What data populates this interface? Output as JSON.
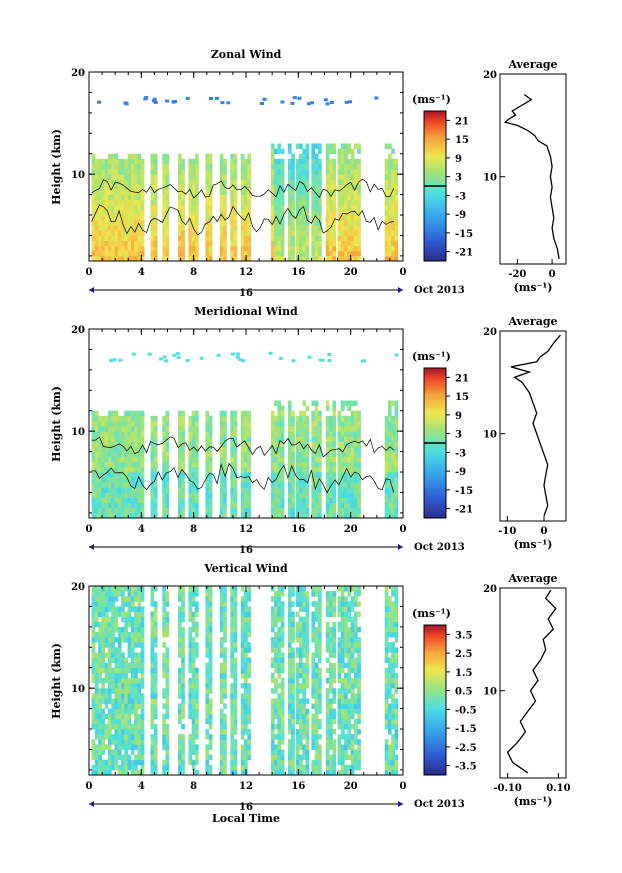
{
  "figure": {
    "time_axis_label": "Local Time",
    "date_label": "Oct 2013",
    "date_day": "16"
  },
  "chart_data": [
    {
      "type": "heatmap",
      "title": "Zonal Wind",
      "ylabel": "Height (km)",
      "xlabel": "Local Time",
      "x_ticks": [
        "0",
        "4",
        "8",
        "12",
        "16",
        "20",
        "0"
      ],
      "y_ticks": [
        "10",
        "20"
      ],
      "xlim": [
        0,
        24
      ],
      "ylim": [
        1.5,
        20
      ],
      "colorbar": {
        "unit": "(ms⁻¹)",
        "ticks": [
          "21",
          "15",
          "9",
          "3",
          "-3",
          "-9",
          "-15",
          "-21"
        ],
        "range": [
          -24,
          24
        ]
      },
      "average_profile": {
        "title": "Average",
        "xlabel": "(ms⁻¹)",
        "x_ticks": [
          "-20",
          "0"
        ],
        "xlim": [
          -30,
          8
        ],
        "ylim": [
          1.5,
          20
        ],
        "profile": [
          [
            4,
            2
          ],
          [
            3,
            3
          ],
          [
            1,
            4
          ],
          [
            0,
            5
          ],
          [
            1,
            6
          ],
          [
            0,
            7
          ],
          [
            -1,
            8
          ],
          [
            0,
            9
          ],
          [
            -1,
            10
          ],
          [
            0,
            11
          ],
          [
            -1,
            12
          ],
          [
            -2,
            12.5
          ],
          [
            -3,
            13
          ],
          [
            -8,
            13.5
          ],
          [
            -10,
            14
          ],
          [
            -14,
            14.5
          ],
          [
            -20,
            15
          ],
          [
            -27,
            15.3
          ],
          [
            -25,
            15.6
          ],
          [
            -21,
            16
          ],
          [
            -23,
            16.4
          ],
          [
            -12,
            17.5
          ],
          [
            -16,
            18
          ]
        ]
      }
    },
    {
      "type": "heatmap",
      "title": "Meridional Wind",
      "ylabel": "Height (km)",
      "xlabel": "Local Time",
      "x_ticks": [
        "0",
        "4",
        "8",
        "12",
        "16",
        "20",
        "0"
      ],
      "y_ticks": [
        "10",
        "20"
      ],
      "xlim": [
        0,
        24
      ],
      "ylim": [
        1.5,
        20
      ],
      "colorbar": {
        "unit": "(ms⁻¹)",
        "ticks": [
          "21",
          "15",
          "9",
          "3",
          "-3",
          "-9",
          "-15",
          "-21"
        ],
        "range": [
          -24,
          24
        ]
      },
      "average_profile": {
        "title": "Average",
        "xlabel": "(ms⁻¹)",
        "x_ticks": [
          "-10",
          "0"
        ],
        "xlim": [
          -12,
          6
        ],
        "ylim": [
          1.5,
          20
        ],
        "profile": [
          [
            0,
            2
          ],
          [
            1,
            3
          ],
          [
            0.5,
            4
          ],
          [
            0,
            5
          ],
          [
            0.5,
            6
          ],
          [
            1,
            7
          ],
          [
            0,
            8
          ],
          [
            -1,
            9
          ],
          [
            -2,
            10
          ],
          [
            -3,
            11
          ],
          [
            -2,
            12
          ],
          [
            -3,
            13
          ],
          [
            -4,
            14
          ],
          [
            -6,
            15
          ],
          [
            -8,
            15.5
          ],
          [
            -4,
            16
          ],
          [
            -9,
            16.5
          ],
          [
            -2,
            17
          ],
          [
            -1,
            17.5
          ],
          [
            1,
            18
          ],
          [
            3,
            19
          ],
          [
            4.5,
            19.6
          ]
        ]
      }
    },
    {
      "type": "heatmap",
      "title": "Vertical Wind",
      "ylabel": "Height (km)",
      "xlabel": "Local Time",
      "x_ticks": [
        "0",
        "4",
        "8",
        "12",
        "16",
        "20",
        "0"
      ],
      "y_ticks": [
        "10",
        "20"
      ],
      "xlim": [
        0,
        24
      ],
      "ylim": [
        1.5,
        20
      ],
      "colorbar": {
        "unit": "(ms⁻¹)",
        "ticks": [
          "3.5",
          "2.5",
          "1.5",
          "0.5",
          "-0.5",
          "-1.5",
          "-2.5",
          "-3.5"
        ],
        "range": [
          -4,
          4
        ]
      },
      "average_profile": {
        "title": "Average",
        "xlabel": "(ms⁻¹)",
        "x_ticks": [
          "-0.10",
          "0.10"
        ],
        "xlim": [
          -0.13,
          0.13
        ],
        "ylim": [
          1.5,
          20
        ],
        "profile": [
          [
            -0.02,
            2
          ],
          [
            -0.08,
            3
          ],
          [
            -0.1,
            4
          ],
          [
            -0.06,
            5
          ],
          [
            -0.03,
            6
          ],
          [
            -0.05,
            7
          ],
          [
            -0.02,
            8
          ],
          [
            0.01,
            9
          ],
          [
            -0.01,
            10
          ],
          [
            0.02,
            11
          ],
          [
            0.0,
            12
          ],
          [
            0.03,
            13
          ],
          [
            0.05,
            14
          ],
          [
            0.04,
            15
          ],
          [
            0.08,
            16
          ],
          [
            0.06,
            17
          ],
          [
            0.09,
            18
          ],
          [
            0.05,
            19
          ],
          [
            0.07,
            19.8
          ]
        ]
      }
    }
  ]
}
